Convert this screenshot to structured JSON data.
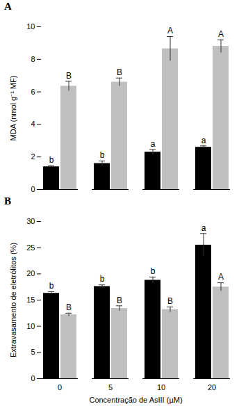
{
  "chart_data": [
    {
      "type": "bar",
      "title": "A",
      "categories": [
        "0",
        "5",
        "10",
        "20"
      ],
      "y_label": "MDA (nmol g⁻¹ MF)",
      "x_label": null,
      "ylim": [
        0,
        10
      ],
      "yticks": [
        0,
        2,
        4,
        6,
        8,
        10
      ],
      "tick_labels": "y",
      "series": [
        {
          "color": "#000000",
          "values": [
            1.4,
            1.6,
            2.3,
            2.6
          ],
          "errors": [
            0.05,
            0.15,
            0.15,
            0.08
          ],
          "letters": [
            "b",
            "b",
            "a",
            "a"
          ]
        },
        {
          "color": "#bfbfbf",
          "values": [
            6.35,
            6.6,
            8.65,
            8.8
          ],
          "errors": [
            0.3,
            0.25,
            0.75,
            0.4
          ],
          "letters": [
            "B",
            "B",
            "A",
            "A"
          ]
        }
      ]
    },
    {
      "type": "bar",
      "title": "B",
      "categories": [
        "0",
        "5",
        "10",
        "20"
      ],
      "y_label": "Extravasamento de eletrólitos (%)",
      "x_label": "Concentração de AsIII (µM)",
      "ylim": [
        0,
        30
      ],
      "yticks": [
        0,
        5,
        10,
        15,
        20,
        25,
        30
      ],
      "series": [
        {
          "color": "#000000",
          "values": [
            16.3,
            17.6,
            18.8,
            25.5
          ],
          "errors": [
            0.3,
            0.3,
            0.6,
            2.2
          ],
          "letters": [
            "b",
            "b",
            "b",
            "a"
          ]
        },
        {
          "color": "#bfbfbf",
          "values": [
            12.2,
            13.4,
            13.2,
            17.5
          ],
          "errors": [
            0.3,
            0.5,
            0.5,
            0.8
          ],
          "letters": [
            "B",
            "B",
            "B",
            "A"
          ]
        }
      ]
    }
  ]
}
